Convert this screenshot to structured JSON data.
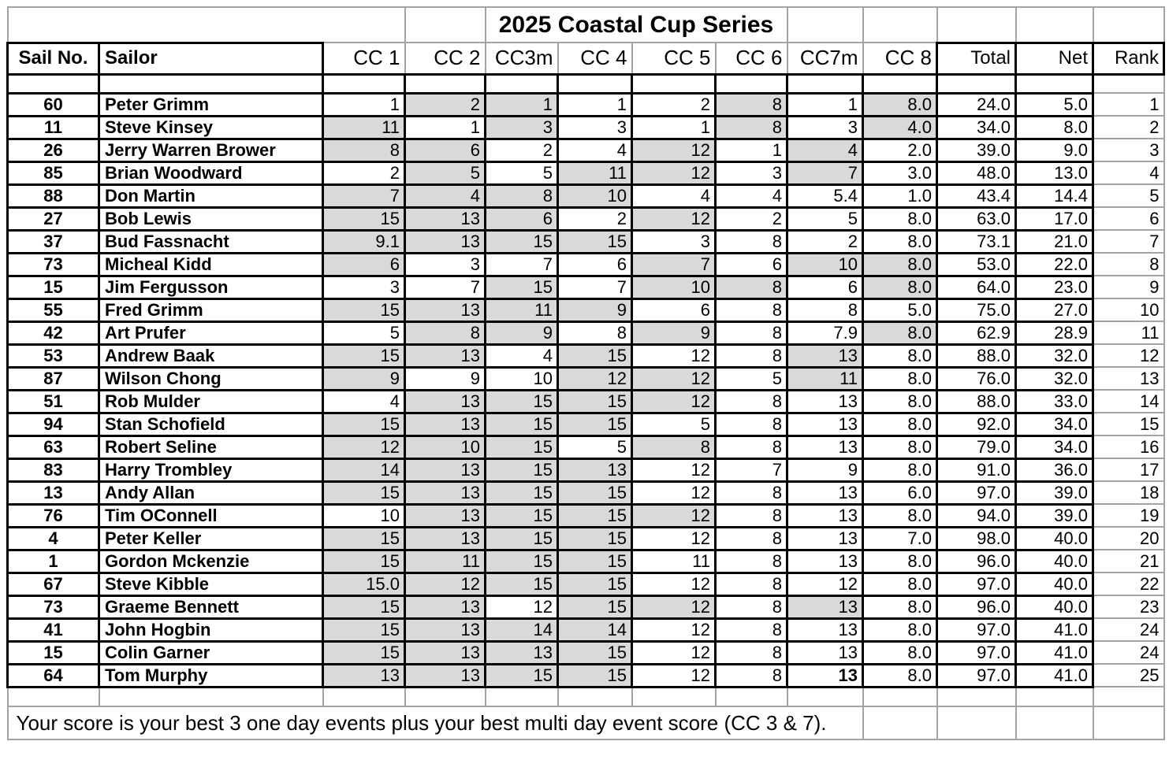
{
  "title": "2025 Coastal Cup Series",
  "note": "Your score is your best 3 one day events plus your best multi day event score (CC 3 & 7).",
  "columns": [
    "Sail No.",
    "Sailor",
    "CC 1",
    "CC 2",
    "CC3m",
    "CC 4",
    "CC 5",
    "CC 6",
    "CC7m",
    "CC 8",
    "Total",
    "Net",
    "Rank"
  ],
  "colors": {
    "shaded_cell": "#d9d9d9",
    "grid_dark": "#000000",
    "grid_light": "#a3a3a3"
  },
  "rows": [
    {
      "sail_no": "60",
      "sailor": "Peter Grimm",
      "scores": [
        {
          "v": "1"
        },
        {
          "v": "2",
          "s": 1
        },
        {
          "v": "1",
          "s": 1
        },
        {
          "v": "1"
        },
        {
          "v": "2"
        },
        {
          "v": "8",
          "s": 1
        },
        {
          "v": "1"
        },
        {
          "v": "8.0",
          "s": 1
        }
      ],
      "total": "24.0",
      "net": "5.0",
      "rank": "1"
    },
    {
      "sail_no": "11",
      "sailor": "Steve Kinsey",
      "scores": [
        {
          "v": "11",
          "s": 1
        },
        {
          "v": "1"
        },
        {
          "v": "3",
          "s": 1
        },
        {
          "v": "3"
        },
        {
          "v": "1"
        },
        {
          "v": "8",
          "s": 1
        },
        {
          "v": "3"
        },
        {
          "v": "4.0",
          "s": 1
        }
      ],
      "total": "34.0",
      "net": "8.0",
      "rank": "2"
    },
    {
      "sail_no": "26",
      "sailor": "Jerry Warren Brower",
      "scores": [
        {
          "v": "8",
          "s": 1
        },
        {
          "v": "6",
          "s": 1
        },
        {
          "v": "2"
        },
        {
          "v": "4"
        },
        {
          "v": "12",
          "s": 1
        },
        {
          "v": "1"
        },
        {
          "v": "4",
          "s": 1
        },
        {
          "v": "2.0"
        }
      ],
      "total": "39.0",
      "net": "9.0",
      "rank": "3"
    },
    {
      "sail_no": "85",
      "sailor": "Brian Woodward",
      "scores": [
        {
          "v": "2"
        },
        {
          "v": "5",
          "s": 1
        },
        {
          "v": "5"
        },
        {
          "v": "11",
          "s": 1
        },
        {
          "v": "12",
          "s": 1
        },
        {
          "v": "3"
        },
        {
          "v": "7",
          "s": 1
        },
        {
          "v": "3.0"
        }
      ],
      "total": "48.0",
      "net": "13.0",
      "rank": "4"
    },
    {
      "sail_no": "88",
      "sailor": "Don Martin",
      "scores": [
        {
          "v": "7",
          "s": 1
        },
        {
          "v": "4",
          "s": 1
        },
        {
          "v": "8",
          "s": 1
        },
        {
          "v": "10",
          "s": 1
        },
        {
          "v": "4"
        },
        {
          "v": "4"
        },
        {
          "v": "5.4"
        },
        {
          "v": "1.0"
        }
      ],
      "total": "43.4",
      "net": "14.4",
      "rank": "5"
    },
    {
      "sail_no": "27",
      "sailor": "Bob Lewis",
      "scores": [
        {
          "v": "15",
          "s": 1
        },
        {
          "v": "13",
          "s": 1
        },
        {
          "v": "6",
          "s": 1
        },
        {
          "v": "2"
        },
        {
          "v": "12",
          "s": 1
        },
        {
          "v": "2"
        },
        {
          "v": "5"
        },
        {
          "v": "8.0"
        }
      ],
      "total": "63.0",
      "net": "17.0",
      "rank": "6"
    },
    {
      "sail_no": "37",
      "sailor": "Bud Fassnacht",
      "scores": [
        {
          "v": "9.1",
          "s": 1
        },
        {
          "v": "13",
          "s": 1
        },
        {
          "v": "15",
          "s": 1
        },
        {
          "v": "15",
          "s": 1
        },
        {
          "v": "3"
        },
        {
          "v": "8"
        },
        {
          "v": "2"
        },
        {
          "v": "8.0"
        }
      ],
      "total": "73.1",
      "net": "21.0",
      "rank": "7"
    },
    {
      "sail_no": "73",
      "sailor": "Micheal Kidd",
      "scores": [
        {
          "v": "6",
          "s": 1
        },
        {
          "v": "3"
        },
        {
          "v": "7"
        },
        {
          "v": "6"
        },
        {
          "v": "7",
          "s": 1
        },
        {
          "v": "6"
        },
        {
          "v": "10",
          "s": 1
        },
        {
          "v": "8.0",
          "s": 1
        }
      ],
      "total": "53.0",
      "net": "22.0",
      "rank": "8"
    },
    {
      "sail_no": "15",
      "sailor": "Jim Fergusson",
      "scores": [
        {
          "v": "3"
        },
        {
          "v": "7"
        },
        {
          "v": "15",
          "s": 1
        },
        {
          "v": "7"
        },
        {
          "v": "10",
          "s": 1
        },
        {
          "v": "8",
          "s": 1
        },
        {
          "v": "6"
        },
        {
          "v": "8.0",
          "s": 1
        }
      ],
      "total": "64.0",
      "net": "23.0",
      "rank": "9"
    },
    {
      "sail_no": "55",
      "sailor": "Fred Grimm",
      "scores": [
        {
          "v": "15",
          "s": 1
        },
        {
          "v": "13",
          "s": 1
        },
        {
          "v": "11",
          "s": 1
        },
        {
          "v": "9",
          "s": 1
        },
        {
          "v": "6"
        },
        {
          "v": "8"
        },
        {
          "v": "8"
        },
        {
          "v": "5.0"
        }
      ],
      "total": "75.0",
      "net": "27.0",
      "rank": "10"
    },
    {
      "sail_no": "42",
      "sailor": "Art Prufer",
      "scores": [
        {
          "v": "5"
        },
        {
          "v": "8",
          "s": 1
        },
        {
          "v": "9",
          "s": 1
        },
        {
          "v": "8"
        },
        {
          "v": "9",
          "s": 1
        },
        {
          "v": "8"
        },
        {
          "v": "7.9"
        },
        {
          "v": "8.0",
          "s": 1
        }
      ],
      "total": "62.9",
      "net": "28.9",
      "rank": "11"
    },
    {
      "sail_no": "53",
      "sailor": "Andrew Baak",
      "scores": [
        {
          "v": "15",
          "s": 1
        },
        {
          "v": "13",
          "s": 1
        },
        {
          "v": "4"
        },
        {
          "v": "15",
          "s": 1
        },
        {
          "v": "12"
        },
        {
          "v": "8"
        },
        {
          "v": "13",
          "s": 1
        },
        {
          "v": "8.0"
        }
      ],
      "total": "88.0",
      "net": "32.0",
      "rank": "12"
    },
    {
      "sail_no": "87",
      "sailor": "Wilson Chong",
      "scores": [
        {
          "v": "9",
          "s": 1
        },
        {
          "v": "9"
        },
        {
          "v": "10"
        },
        {
          "v": "12",
          "s": 1
        },
        {
          "v": "12",
          "s": 1
        },
        {
          "v": "5"
        },
        {
          "v": "11",
          "s": 1
        },
        {
          "v": "8.0"
        }
      ],
      "total": "76.0",
      "net": "32.0",
      "rank": "13"
    },
    {
      "sail_no": "51",
      "sailor": "Rob Mulder",
      "scores": [
        {
          "v": "4"
        },
        {
          "v": "13",
          "s": 1
        },
        {
          "v": "15",
          "s": 1
        },
        {
          "v": "15",
          "s": 1
        },
        {
          "v": "12",
          "s": 1
        },
        {
          "v": "8"
        },
        {
          "v": "13"
        },
        {
          "v": "8.0"
        }
      ],
      "total": "88.0",
      "net": "33.0",
      "rank": "14"
    },
    {
      "sail_no": "94",
      "sailor": "Stan Schofield",
      "scores": [
        {
          "v": "15",
          "s": 1
        },
        {
          "v": "13",
          "s": 1
        },
        {
          "v": "15",
          "s": 1
        },
        {
          "v": "15",
          "s": 1
        },
        {
          "v": "5"
        },
        {
          "v": "8"
        },
        {
          "v": "13"
        },
        {
          "v": "8.0"
        }
      ],
      "total": "92.0",
      "net": "34.0",
      "rank": "15"
    },
    {
      "sail_no": "63",
      "sailor": "Robert Seline",
      "scores": [
        {
          "v": "12",
          "s": 1
        },
        {
          "v": "10",
          "s": 1
        },
        {
          "v": "15",
          "s": 1
        },
        {
          "v": "5"
        },
        {
          "v": "8",
          "s": 1
        },
        {
          "v": "8"
        },
        {
          "v": "13"
        },
        {
          "v": "8.0"
        }
      ],
      "total": "79.0",
      "net": "34.0",
      "rank": "16"
    },
    {
      "sail_no": "83",
      "sailor": "Harry Trombley",
      "scores": [
        {
          "v": "14",
          "s": 1
        },
        {
          "v": "13",
          "s": 1
        },
        {
          "v": "15",
          "s": 1
        },
        {
          "v": "13",
          "s": 1
        },
        {
          "v": "12"
        },
        {
          "v": "7"
        },
        {
          "v": "9"
        },
        {
          "v": "8.0"
        }
      ],
      "total": "91.0",
      "net": "36.0",
      "rank": "17"
    },
    {
      "sail_no": "13",
      "sailor": "Andy Allan",
      "scores": [
        {
          "v": "15",
          "s": 1
        },
        {
          "v": "13",
          "s": 1
        },
        {
          "v": "15",
          "s": 1
        },
        {
          "v": "15",
          "s": 1
        },
        {
          "v": "12"
        },
        {
          "v": "8"
        },
        {
          "v": "13"
        },
        {
          "v": "6.0"
        }
      ],
      "total": "97.0",
      "net": "39.0",
      "rank": "18"
    },
    {
      "sail_no": "76",
      "sailor": "Tim OConnell",
      "scores": [
        {
          "v": "10"
        },
        {
          "v": "13",
          "s": 1
        },
        {
          "v": "15",
          "s": 1
        },
        {
          "v": "15",
          "s": 1
        },
        {
          "v": "12",
          "s": 1
        },
        {
          "v": "8"
        },
        {
          "v": "13"
        },
        {
          "v": "8.0"
        }
      ],
      "total": "94.0",
      "net": "39.0",
      "rank": "19"
    },
    {
      "sail_no": "4",
      "sailor": "Peter Keller",
      "scores": [
        {
          "v": "15",
          "s": 1
        },
        {
          "v": "13",
          "s": 1
        },
        {
          "v": "15",
          "s": 1
        },
        {
          "v": "15",
          "s": 1
        },
        {
          "v": "12"
        },
        {
          "v": "8"
        },
        {
          "v": "13"
        },
        {
          "v": "7.0"
        }
      ],
      "total": "98.0",
      "net": "40.0",
      "rank": "20"
    },
    {
      "sail_no": "1",
      "sailor": "Gordon Mckenzie",
      "scores": [
        {
          "v": "15",
          "s": 1
        },
        {
          "v": "11",
          "s": 1
        },
        {
          "v": "15",
          "s": 1
        },
        {
          "v": "15",
          "s": 1
        },
        {
          "v": "11"
        },
        {
          "v": "8"
        },
        {
          "v": "13"
        },
        {
          "v": "8.0"
        }
      ],
      "total": "96.0",
      "net": "40.0",
      "rank": "21"
    },
    {
      "sail_no": "67",
      "sailor": "Steve Kibble",
      "scores": [
        {
          "v": "15.0",
          "s": 1
        },
        {
          "v": "12",
          "s": 1
        },
        {
          "v": "15",
          "s": 1
        },
        {
          "v": "15",
          "s": 1
        },
        {
          "v": "12"
        },
        {
          "v": "8"
        },
        {
          "v": "12"
        },
        {
          "v": "8.0"
        }
      ],
      "total": "97.0",
      "net": "40.0",
      "rank": "22"
    },
    {
      "sail_no": "73",
      "sailor": "Graeme Bennett",
      "scores": [
        {
          "v": "15",
          "s": 1
        },
        {
          "v": "13",
          "s": 1
        },
        {
          "v": "12"
        },
        {
          "v": "15",
          "s": 1
        },
        {
          "v": "12",
          "s": 1
        },
        {
          "v": "8"
        },
        {
          "v": "13",
          "s": 1
        },
        {
          "v": "8.0"
        }
      ],
      "total": "96.0",
      "net": "40.0",
      "rank": "23"
    },
    {
      "sail_no": "41",
      "sailor": "John Hogbin",
      "scores": [
        {
          "v": "15",
          "s": 1
        },
        {
          "v": "13",
          "s": 1
        },
        {
          "v": "14",
          "s": 1
        },
        {
          "v": "14",
          "s": 1
        },
        {
          "v": "12"
        },
        {
          "v": "8"
        },
        {
          "v": "13"
        },
        {
          "v": "8.0"
        }
      ],
      "total": "97.0",
      "net": "41.0",
      "rank": "24"
    },
    {
      "sail_no": "15",
      "sailor": "Colin Garner",
      "scores": [
        {
          "v": "15",
          "s": 1
        },
        {
          "v": "13",
          "s": 1
        },
        {
          "v": "13",
          "s": 1
        },
        {
          "v": "15",
          "s": 1
        },
        {
          "v": "12"
        },
        {
          "v": "8"
        },
        {
          "v": "13"
        },
        {
          "v": "8.0"
        }
      ],
      "total": "97.0",
      "net": "41.0",
      "rank": "24"
    },
    {
      "sail_no": "64",
      "sailor": "Tom Murphy",
      "scores": [
        {
          "v": "13",
          "s": 1
        },
        {
          "v": "13",
          "s": 1
        },
        {
          "v": "15",
          "s": 1
        },
        {
          "v": "15",
          "s": 1
        },
        {
          "v": "12"
        },
        {
          "v": "8"
        },
        {
          "v": "13",
          "b": 1
        },
        {
          "v": "8.0"
        }
      ],
      "total": "97.0",
      "net": "41.0",
      "rank": "25"
    }
  ]
}
